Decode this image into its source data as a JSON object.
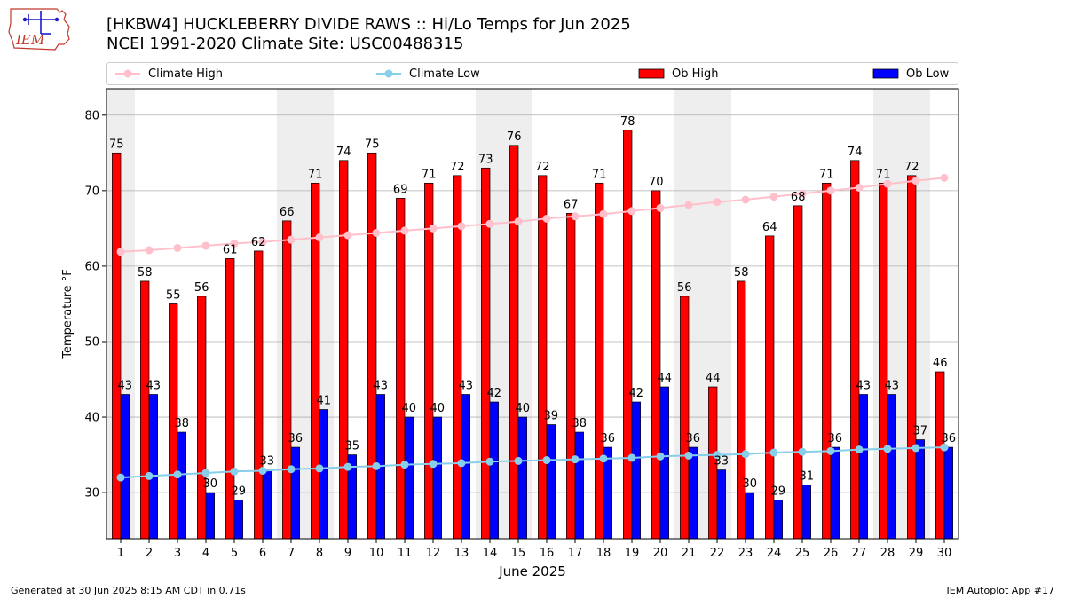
{
  "header": {
    "title": "[HKBW4] HUCKLEBERRY DIVIDE RAWS :: Hi/Lo Temps for Jun 2025",
    "subtitle": "NCEI 1991-2020 Climate Site: USC00488315",
    "logo_text": "IEM"
  },
  "footer": {
    "generated": "Generated at 30 Jun 2025 8:15 AM CDT in 0.71s",
    "app": "IEM Autoplot App #17"
  },
  "chart_data": {
    "type": "bar",
    "xlabel": "June 2025",
    "ylabel": "Temperature °F",
    "ylim": [
      23.9,
      83.5
    ],
    "yticks": [
      30,
      40,
      50,
      60,
      70,
      80
    ],
    "legend_position": "top",
    "grid": "horizontal",
    "weekend_shading": true,
    "shaded_days": [
      1,
      7,
      8,
      14,
      15,
      21,
      22,
      28,
      29
    ],
    "x": [
      1,
      2,
      3,
      4,
      5,
      6,
      7,
      8,
      9,
      10,
      11,
      12,
      13,
      14,
      15,
      16,
      17,
      18,
      19,
      20,
      21,
      22,
      23,
      24,
      25,
      26,
      27,
      28,
      29,
      30
    ],
    "series": [
      {
        "name": "Ob High",
        "kind": "bar",
        "color": "#ff0000",
        "values": [
          75,
          58,
          55,
          56,
          61,
          62,
          66,
          71,
          74,
          75,
          69,
          71,
          72,
          73,
          76,
          72,
          67,
          71,
          78,
          70,
          56,
          44,
          58,
          64,
          68,
          71,
          74,
          71,
          72,
          46
        ]
      },
      {
        "name": "Ob Low",
        "kind": "bar",
        "color": "#0000ff",
        "values": [
          43,
          43,
          38,
          30,
          29,
          33,
          36,
          41,
          35,
          43,
          40,
          40,
          43,
          42,
          40,
          39,
          38,
          36,
          42,
          44,
          36,
          33,
          30,
          29,
          31,
          36,
          43,
          43,
          37,
          36
        ]
      },
      {
        "name": "Climate High",
        "kind": "line",
        "color": "#ffc0cb",
        "values": [
          61.9,
          62.1,
          62.4,
          62.7,
          63.0,
          63.2,
          63.5,
          63.8,
          64.1,
          64.4,
          64.7,
          65.0,
          65.3,
          65.6,
          65.9,
          66.3,
          66.6,
          66.9,
          67.3,
          67.7,
          68.1,
          68.5,
          68.8,
          69.2,
          69.6,
          70.0,
          70.4,
          70.9,
          71.3,
          71.7
        ]
      },
      {
        "name": "Climate Low",
        "kind": "line",
        "color": "#87ceeb",
        "values": [
          32.0,
          32.2,
          32.4,
          32.6,
          32.8,
          32.9,
          33.1,
          33.2,
          33.4,
          33.5,
          33.7,
          33.8,
          33.9,
          34.1,
          34.2,
          34.3,
          34.4,
          34.5,
          34.6,
          34.8,
          34.9,
          35.0,
          35.1,
          35.3,
          35.4,
          35.5,
          35.7,
          35.8,
          35.9,
          36.0
        ]
      }
    ]
  }
}
